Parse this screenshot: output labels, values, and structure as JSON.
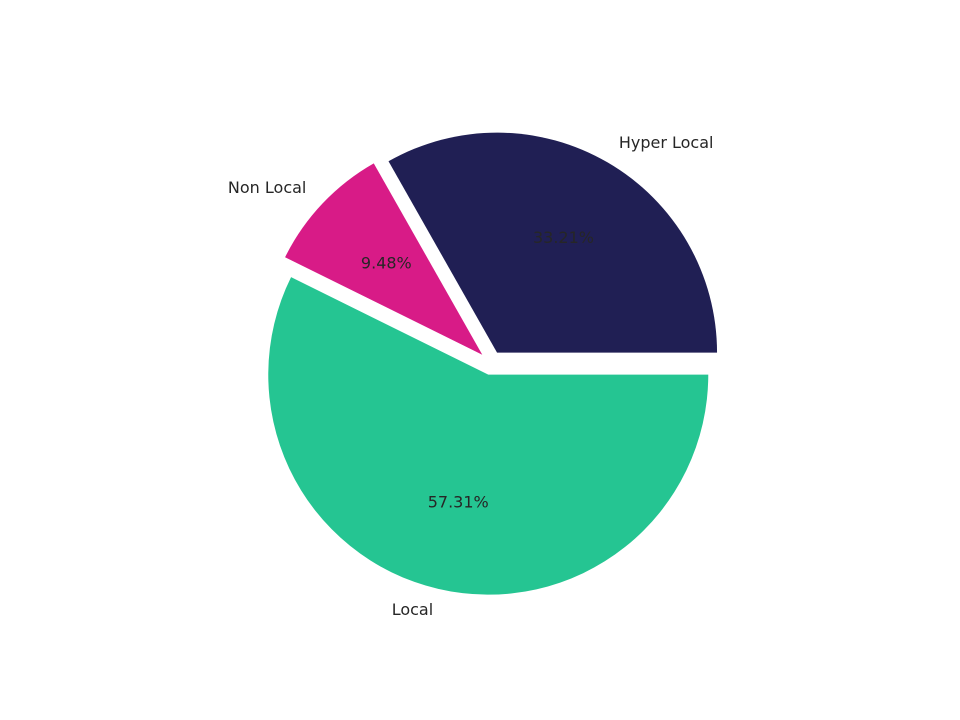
{
  "chart_data": {
    "type": "pie",
    "categories": [
      "Hyper Local",
      "Non Local",
      "Local"
    ],
    "values": [
      33.21,
      9.48,
      57.31
    ],
    "value_labels": [
      "33.21%",
      "9.48%",
      "57.31%"
    ],
    "colors": [
      "#201f54",
      "#d81b87",
      "#25c592"
    ]
  }
}
